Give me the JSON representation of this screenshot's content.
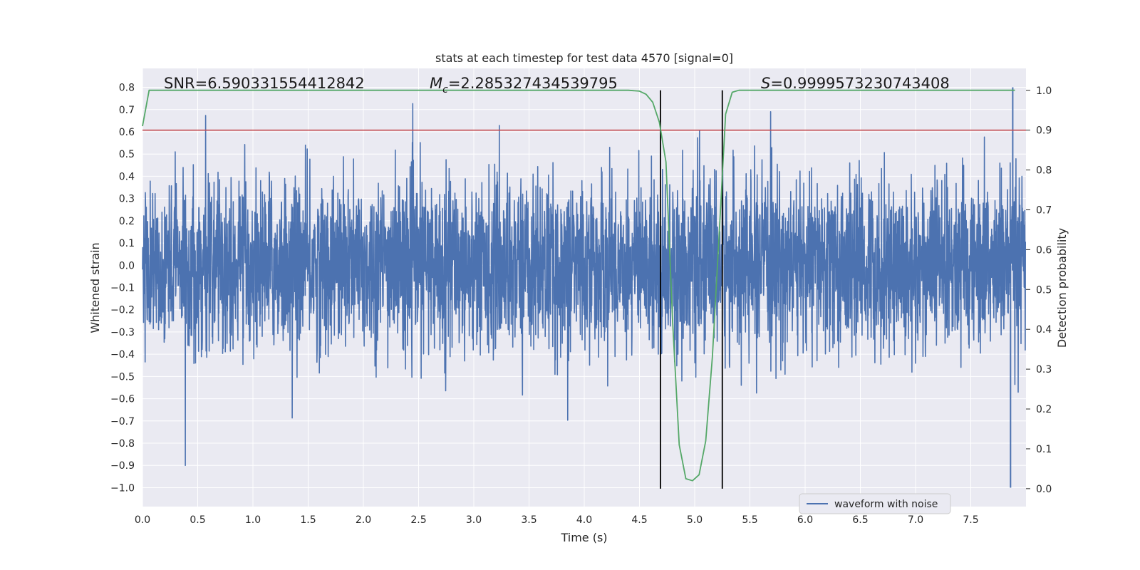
{
  "chart_data": {
    "type": "line",
    "title": "stats at each timestep for test data 4570 [signal=0]",
    "xlabel": "Time (s)",
    "ylabel": "Whitened strain",
    "y2label": "Detection probability",
    "xlim": [
      0.0,
      8.0
    ],
    "ylim": [
      -1.085,
      0.885
    ],
    "y2lim": [
      -0.045,
      1.055
    ],
    "xticks": [
      "0.0",
      "0.5",
      "1.0",
      "1.5",
      "2.0",
      "2.5",
      "3.0",
      "3.5",
      "4.0",
      "4.5",
      "5.0",
      "5.5",
      "6.0",
      "6.5",
      "7.0",
      "7.5"
    ],
    "xtick_values": [
      0.0,
      0.5,
      1.0,
      1.5,
      2.0,
      2.5,
      3.0,
      3.5,
      4.0,
      4.5,
      5.0,
      5.5,
      6.0,
      6.5,
      7.0,
      7.5
    ],
    "yticks": [
      "0.8",
      "0.7",
      "0.6",
      "0.5",
      "0.4",
      "0.3",
      "0.2",
      "0.1",
      "0.0",
      "−0.1",
      "−0.2",
      "−0.3",
      "−0.4",
      "−0.5",
      "−0.6",
      "−0.7",
      "−0.8",
      "−0.9",
      "−1.0"
    ],
    "ytick_values": [
      0.8,
      0.7,
      0.6,
      0.5,
      0.4,
      0.3,
      0.2,
      0.1,
      0.0,
      -0.1,
      -0.2,
      -0.3,
      -0.4,
      -0.5,
      -0.6,
      -0.7,
      -0.8,
      -0.9,
      -1.0
    ],
    "y2ticks": [
      "1.0",
      "0.9",
      "0.8",
      "0.7",
      "0.6",
      "0.5",
      "0.4",
      "0.3",
      "0.2",
      "0.1",
      "0.0"
    ],
    "y2tick_values": [
      1.0,
      0.9,
      0.8,
      0.7,
      0.6,
      0.5,
      0.4,
      0.3,
      0.2,
      0.1,
      0.0
    ],
    "grid": true,
    "legend_position": "lower-right",
    "annotations": {
      "snr_text": "SNR=6.590331554412842",
      "mc_symbol": "M",
      "mc_sub": "c",
      "mc_value": "=2.285327434539795",
      "s_symbol": "S",
      "s_value": "=0.9999573230743408"
    },
    "series": [
      {
        "name": "waveform with noise",
        "color": "#4c72b0",
        "kind": "noise",
        "sample_rate_hz": 2048,
        "approx_envelope": [
          -0.6,
          0.6
        ],
        "extreme_min": {
          "x": 7.86,
          "y": -1.0
        },
        "extreme_max": {
          "x": 7.88,
          "y": 0.8
        }
      },
      {
        "color": "#55a868",
        "axis": "right",
        "x": [
          0.0,
          0.06,
          0.15,
          0.5,
          1.0,
          2.0,
          3.0,
          4.0,
          4.4,
          4.5,
          4.56,
          4.62,
          4.68,
          4.74,
          4.8,
          4.86,
          4.92,
          4.98,
          5.04,
          5.1,
          5.16,
          5.22,
          5.28,
          5.34,
          5.4,
          5.6,
          6.0,
          7.0,
          7.9
        ],
        "y": [
          0.91,
          1.0,
          1.0,
          1.0,
          1.0,
          1.0,
          1.0,
          1.0,
          1.0,
          0.998,
          0.99,
          0.97,
          0.92,
          0.82,
          0.42,
          0.11,
          0.025,
          0.02,
          0.035,
          0.12,
          0.33,
          0.63,
          0.94,
          0.995,
          1.0,
          1.0,
          1.0,
          1.0,
          1.0
        ]
      }
    ],
    "threshold": {
      "axis": "right",
      "value": 0.9,
      "color": "#c44e52"
    },
    "vlines": [
      {
        "x": 4.69,
        "color": "#000000"
      },
      {
        "x": 5.25,
        "color": "#000000"
      }
    ]
  }
}
